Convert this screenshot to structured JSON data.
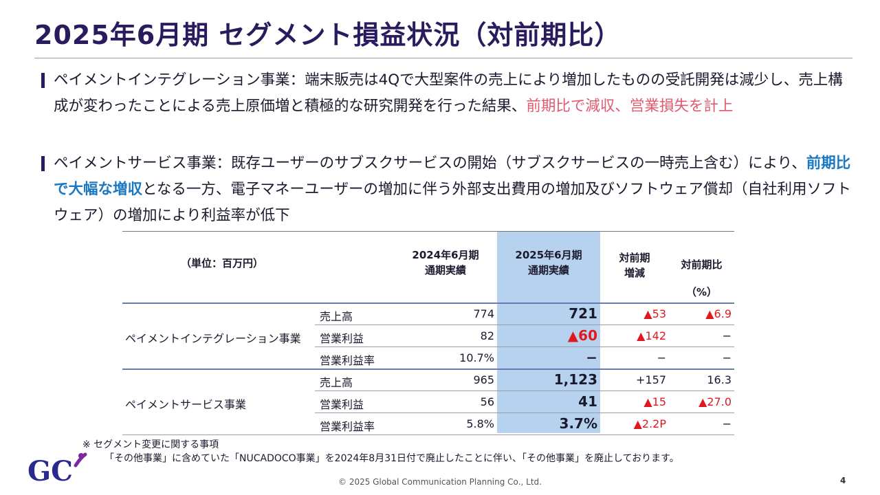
{
  "title": "2025年6月期 セグメント損益状況（対前期比）",
  "bullets": [
    {
      "parts": [
        {
          "text": "ペイメントインテグレーション事業：端末販売は4Qで大型案件の売上により増加したものの受託開発は減少し、売上構成が変わったことによる売上原価増と積極的な研究開発を行った結果、",
          "style": "normal"
        },
        {
          "text": "前期比で減収、営業損失を計上",
          "style": "red"
        }
      ]
    },
    {
      "parts": [
        {
          "text": "ペイメントサービス事業：既存ユーザーのサブスクサービスの開始（サブスクサービスの一時売上含む）により、",
          "style": "normal"
        },
        {
          "text": "前期比で大幅な増収",
          "style": "blue"
        },
        {
          "text": "となる一方、電子マネーユーザーの増加に伴う外部支出費用の増加及びソフトウェア償却（自社利用ソフトウェア）の増加により利益率が低下",
          "style": "normal"
        }
      ]
    }
  ],
  "table": {
    "unit_label": "（単位：百万円）",
    "col_prev": "2024年6月期\n通期実績",
    "col_curr": "2025年6月期\n通期実績",
    "col_diff": "対前期\n増減",
    "col_pct": "対前期比",
    "col_pct_unit": "（%）",
    "segments": [
      {
        "name": "ペイメントインテグレーション事業",
        "rows": [
          {
            "item": "売上高",
            "prev": "774",
            "curr": "721",
            "curr_red": false,
            "diff": "▲53",
            "diff_red": true,
            "pct": "▲6.9",
            "pct_red": true
          },
          {
            "item": "営業利益",
            "prev": "82",
            "curr": "▲60",
            "curr_red": true,
            "diff": "▲142",
            "diff_red": true,
            "pct": "−",
            "pct_red": false
          },
          {
            "item": "営業利益率",
            "prev": "10.7%",
            "curr": "−",
            "curr_red": false,
            "diff": "−",
            "diff_red": false,
            "pct": "−",
            "pct_red": false
          }
        ]
      },
      {
        "name": "ペイメントサービス事業",
        "rows": [
          {
            "item": "売上高",
            "prev": "965",
            "curr": "1,123",
            "curr_red": false,
            "diff": "+157",
            "diff_red": false,
            "pct": "16.3",
            "pct_red": false
          },
          {
            "item": "営業利益",
            "prev": "56",
            "curr": "41",
            "curr_red": false,
            "diff": "▲15",
            "diff_red": true,
            "pct": "▲27.0",
            "pct_red": true
          },
          {
            "item": "営業利益率",
            "prev": "5.8%",
            "curr": "3.7%",
            "curr_red": false,
            "diff": "▲2.2P",
            "diff_red": true,
            "pct": "−",
            "pct_red": false
          }
        ]
      }
    ]
  },
  "note_title": "※ セグメント変更に関する事項",
  "note_body": "「その他事業」に含めていた「NUCADOCO事業」を2024年8月31日付で廃止したことに伴い、「その他事業」を廃止しております。",
  "logo_text": "GC",
  "footer": "© 2025 Global Communication Planning Co., Ltd.",
  "page_number": "4"
}
